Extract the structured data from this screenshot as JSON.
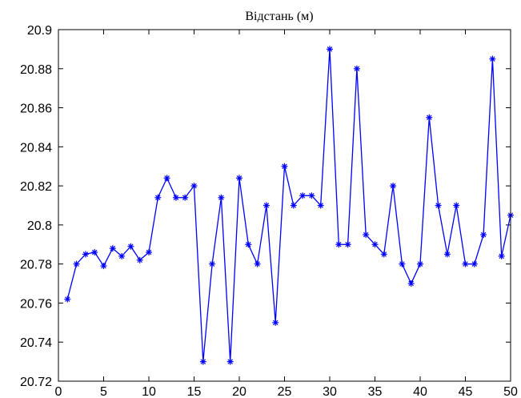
{
  "chart_data": {
    "type": "line",
    "title": "Відстань (м)",
    "xlabel": "",
    "ylabel": "",
    "xlim": [
      0,
      50
    ],
    "ylim": [
      20.72,
      20.9
    ],
    "xticks": [
      "0",
      "5",
      "10",
      "15",
      "20",
      "25",
      "30",
      "35",
      "40",
      "45",
      "50"
    ],
    "yticks": [
      "20.72",
      "20.74",
      "20.76",
      "20.78",
      "20.8",
      "20.82",
      "20.84",
      "20.86",
      "20.88",
      "20.9"
    ],
    "grid": false,
    "series_color": "#0000ff",
    "marker": "asterisk",
    "series": [
      {
        "x": [
          1,
          2,
          3,
          4,
          5,
          6,
          7,
          8,
          9,
          10,
          11,
          12,
          13,
          14,
          15,
          16,
          17,
          18,
          19,
          20,
          21,
          22,
          23,
          24,
          25,
          26,
          27,
          28,
          29,
          30,
          31,
          32,
          33,
          34,
          35,
          36,
          37,
          38,
          39,
          40,
          41,
          42,
          43,
          44,
          45,
          46,
          47,
          48,
          49,
          50
        ],
        "values": [
          20.762,
          20.78,
          20.785,
          20.786,
          20.779,
          20.788,
          20.784,
          20.789,
          20.782,
          20.786,
          20.814,
          20.824,
          20.814,
          20.814,
          20.82,
          20.73,
          20.78,
          20.814,
          20.73,
          20.824,
          20.79,
          20.78,
          20.81,
          20.75,
          20.83,
          20.81,
          20.815,
          20.815,
          20.81,
          20.89,
          20.79,
          20.79,
          20.88,
          20.795,
          20.79,
          20.785,
          20.82,
          20.78,
          20.77,
          20.78,
          20.855,
          20.81,
          20.785,
          20.81,
          20.78,
          20.78,
          20.795,
          20.885,
          20.784,
          20.805
        ]
      }
    ]
  }
}
